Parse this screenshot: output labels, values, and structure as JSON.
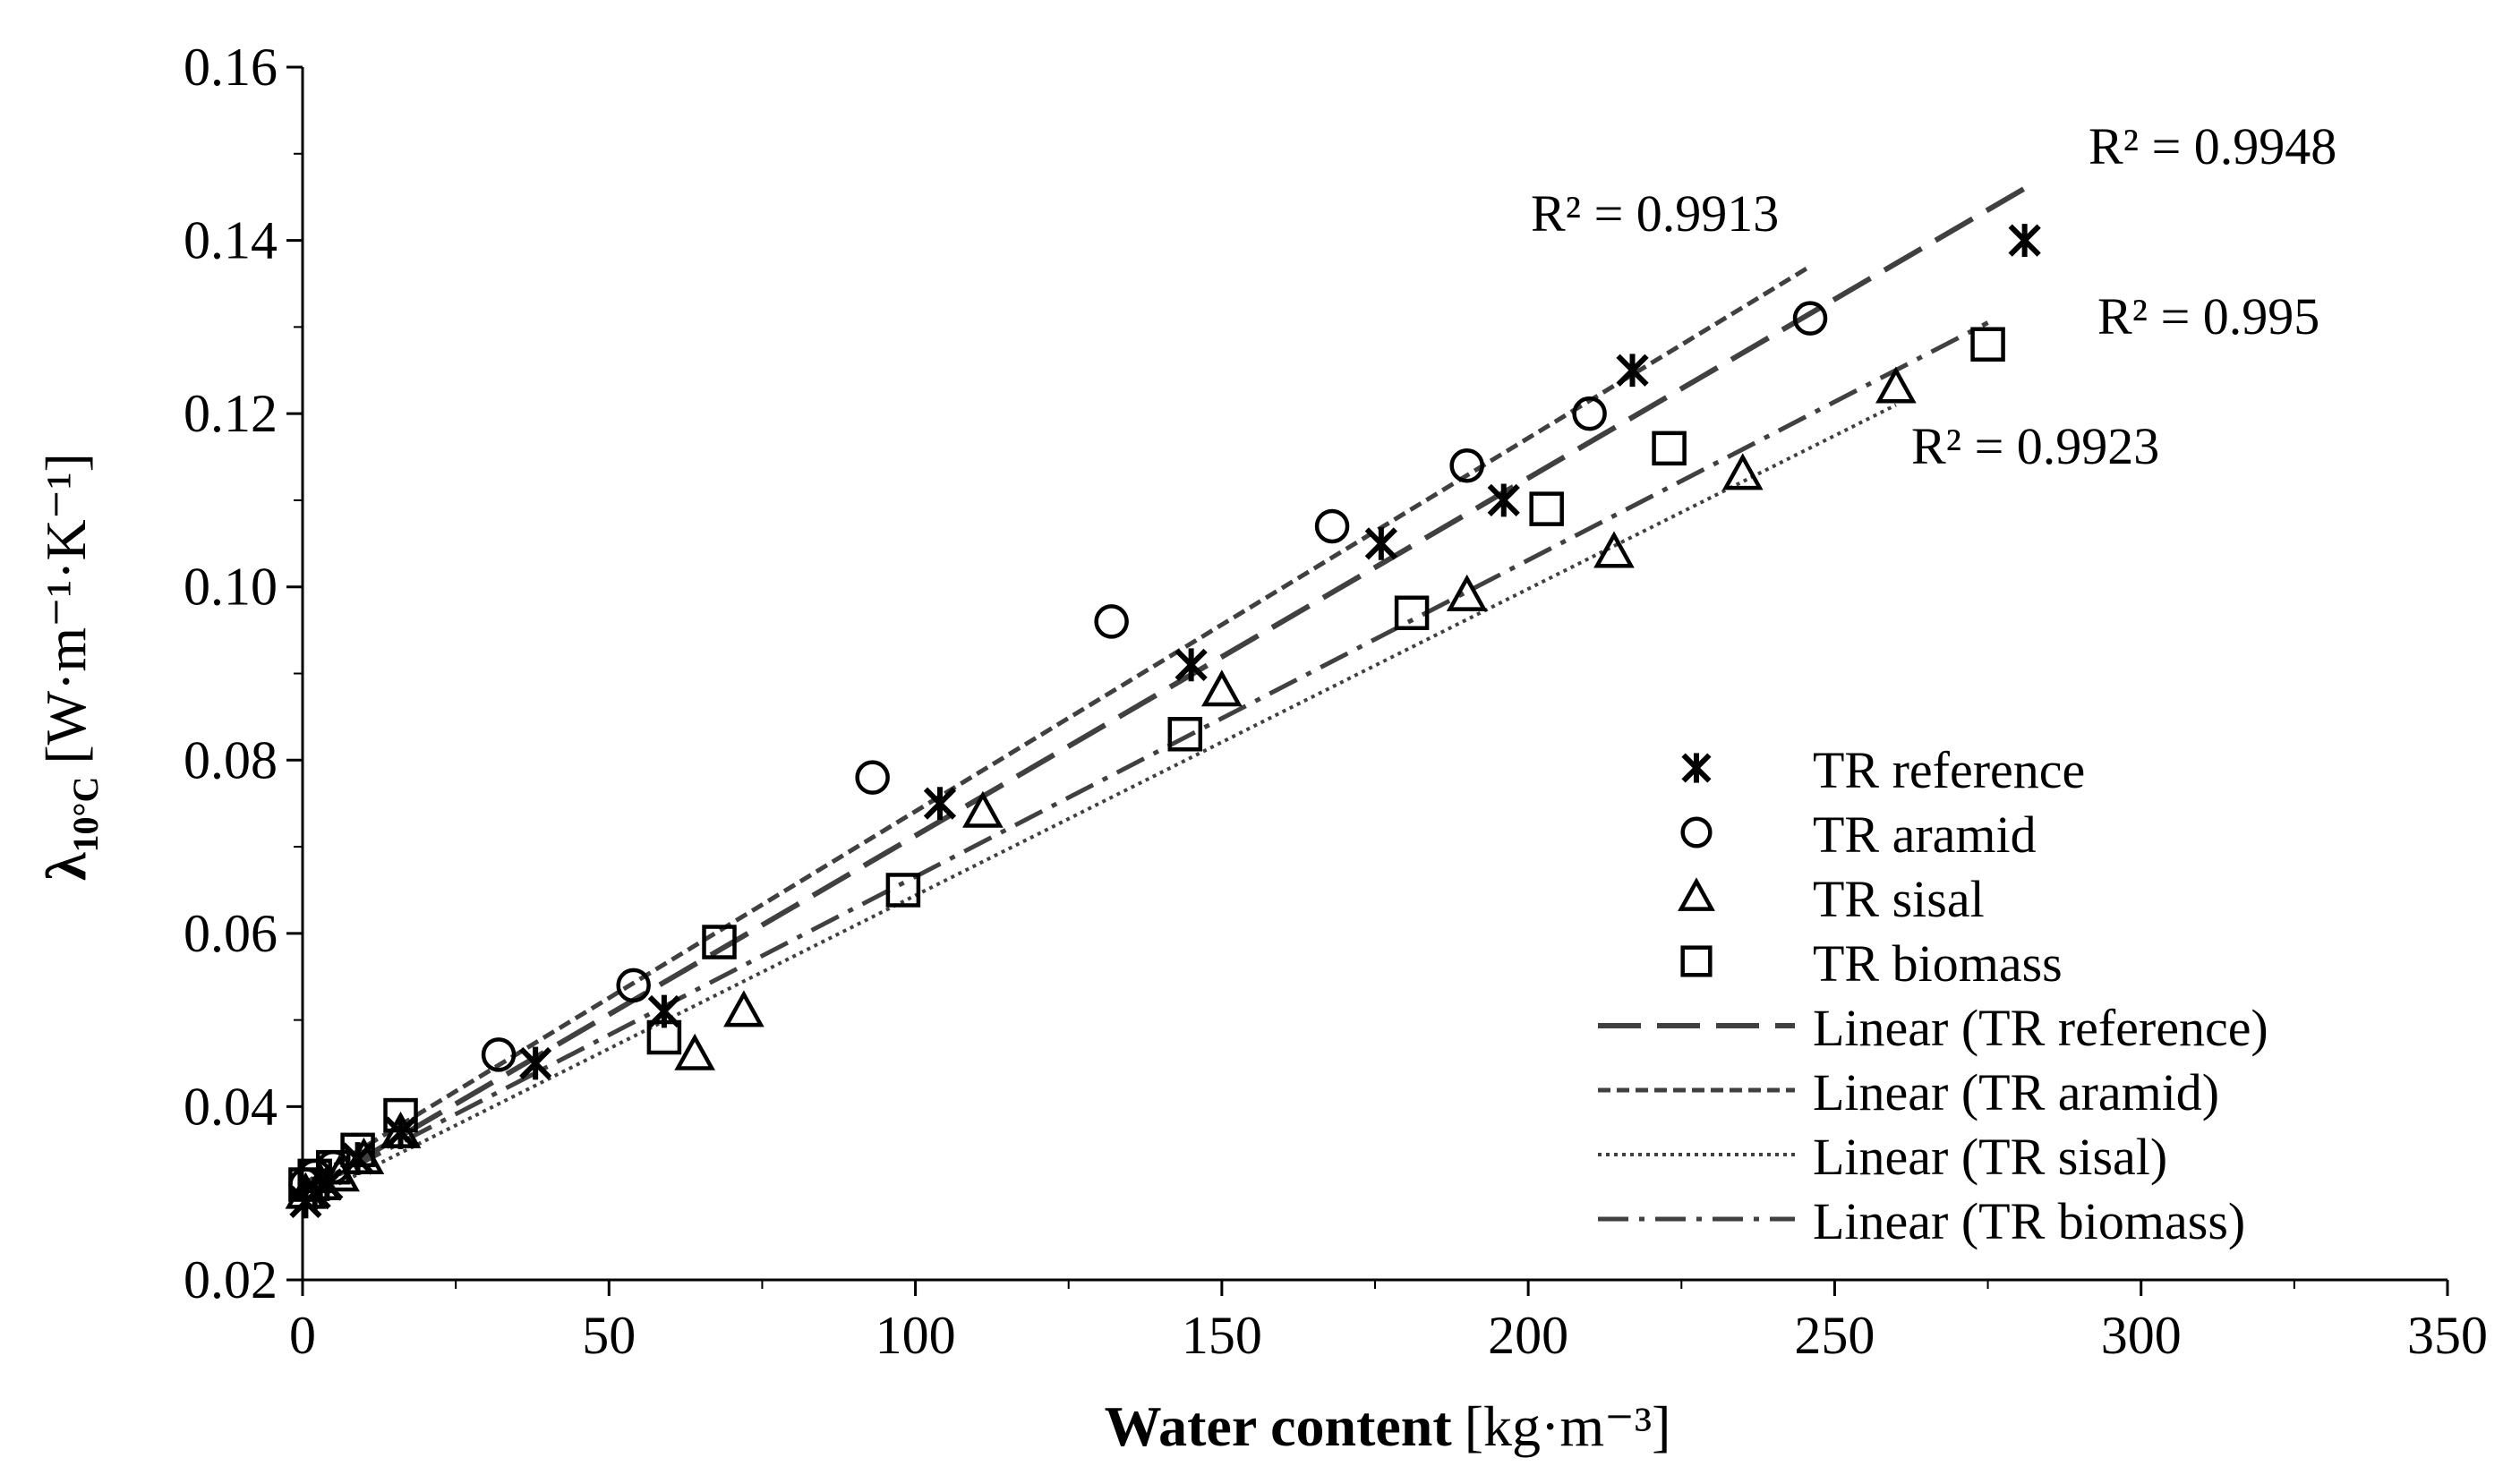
{
  "chart_data": {
    "type": "scatter",
    "title": "",
    "xlabel": "Water content",
    "xlabel_unit": "[kg·m⁻³]",
    "ylabel_symbol": "λ",
    "ylabel_sub": "10°C",
    "ylabel_unit": "[W·m⁻¹·K⁻¹]",
    "xlim": [
      0,
      350
    ],
    "ylim": [
      0.02,
      0.16
    ],
    "x_ticks": [
      0,
      50,
      100,
      150,
      200,
      250,
      300,
      350
    ],
    "y_ticks": [
      0.02,
      0.04,
      0.06,
      0.08,
      0.1,
      0.12,
      0.14,
      0.16
    ],
    "x_tick_labels": [
      "0",
      "50",
      "100",
      "150",
      "200",
      "250",
      "300",
      "350"
    ],
    "y_tick_labels": [
      "0.02",
      "0.04",
      "0.06",
      "0.08",
      "0.10",
      "0.12",
      "0.14",
      "0.16"
    ],
    "grid": false,
    "legend_position": "bottom-right",
    "series": [
      {
        "name": "TR reference",
        "marker": "asterisk",
        "x": [
          0.5,
          2,
          4,
          9,
          16,
          38,
          59,
          104,
          145,
          176,
          196,
          217,
          281
        ],
        "y": [
          0.029,
          0.03,
          0.031,
          0.034,
          0.037,
          0.045,
          0.051,
          0.075,
          0.091,
          0.105,
          0.11,
          0.125,
          0.14
        ]
      },
      {
        "name": "TR aramid",
        "marker": "circle",
        "x": [
          0.5,
          2,
          5,
          32,
          54,
          93,
          132,
          168,
          190,
          210,
          246
        ],
        "y": [
          0.031,
          0.032,
          0.033,
          0.046,
          0.054,
          0.078,
          0.096,
          0.107,
          0.114,
          0.12,
          0.131
        ]
      },
      {
        "name": "TR sisal",
        "marker": "triangle",
        "x": [
          0.5,
          3,
          6,
          10,
          16,
          64,
          72,
          111,
          150,
          190,
          214,
          235,
          260
        ],
        "y": [
          0.03,
          0.031,
          0.032,
          0.034,
          0.037,
          0.046,
          0.051,
          0.074,
          0.088,
          0.099,
          0.104,
          0.113,
          0.123
        ]
      },
      {
        "name": "TR biomass",
        "marker": "square",
        "x": [
          0.5,
          2,
          5,
          9,
          16,
          59,
          68,
          98,
          144,
          181,
          203,
          223,
          275
        ],
        "y": [
          0.031,
          0.032,
          0.033,
          0.035,
          0.039,
          0.048,
          0.059,
          0.065,
          0.083,
          0.097,
          0.109,
          0.116,
          0.128
        ]
      }
    ],
    "trendlines": [
      {
        "name": "Linear (TR reference)",
        "dash": "long-dash",
        "x_range": [
          0,
          281
        ],
        "y_range": [
          0.03,
          0.146
        ],
        "r2": "R² = 0.9948"
      },
      {
        "name": "Linear (TR aramid)",
        "dash": "short-dash",
        "x_range": [
          0,
          246
        ],
        "y_range": [
          0.031,
          0.137
        ],
        "r2": "R² = 0.9913"
      },
      {
        "name": "Linear (TR sisal)",
        "dash": "dotted",
        "x_range": [
          0,
          260
        ],
        "y_range": [
          0.029,
          0.121
        ],
        "r2": "R² = 0.9923"
      },
      {
        "name": "Linear (TR biomass)",
        "dash": "dash-dot",
        "x_range": [
          0,
          275
        ],
        "y_range": [
          0.03,
          0.1305
        ],
        "r2": "R² = 0.995"
      }
    ],
    "colors": {
      "markers": "#000000",
      "trendline": "#404040",
      "axis": "#000000"
    }
  }
}
